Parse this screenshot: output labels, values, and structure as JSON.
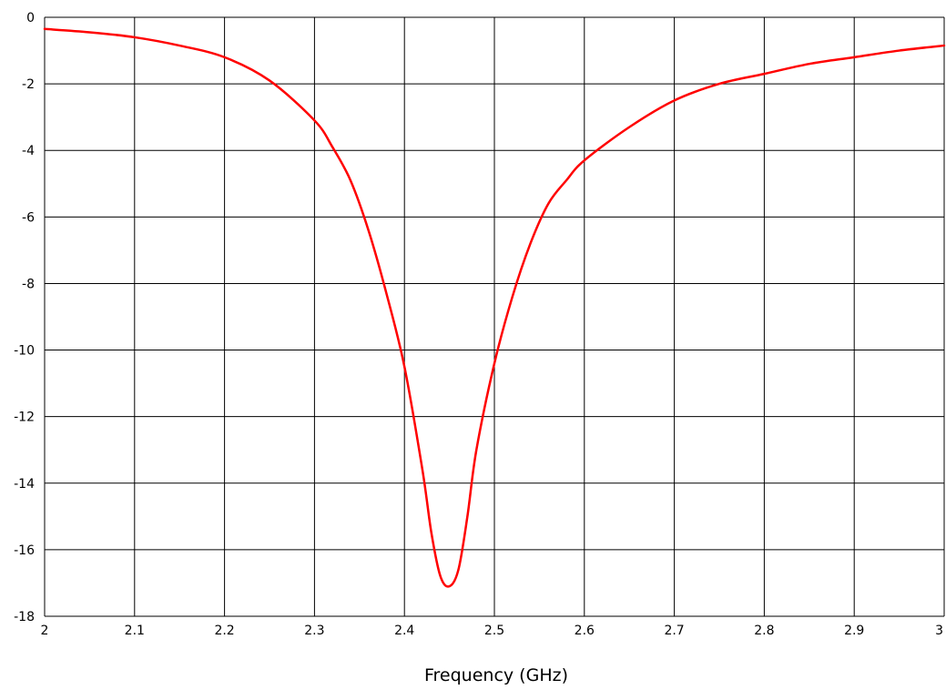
{
  "chart_data": {
    "type": "line",
    "title": "",
    "xlabel": "Frequency (GHz)",
    "ylabel": "",
    "xlim": [
      2,
      3
    ],
    "ylim": [
      -18,
      0
    ],
    "grid": true,
    "x_ticks": [
      2,
      2.1,
      2.2,
      2.3,
      2.4,
      2.5,
      2.6,
      2.7,
      2.8,
      2.9,
      3
    ],
    "x_tick_labels": [
      "2",
      "2.1",
      "2.2",
      "2.3",
      "2.4",
      "2.5",
      "2.6",
      "2.7",
      "2.8",
      "2.9",
      "3"
    ],
    "y_ticks": [
      0,
      -2,
      -4,
      -6,
      -8,
      -10,
      -12,
      -14,
      -16,
      -18
    ],
    "y_tick_labels": [
      "0",
      "-2",
      "-4",
      "-6",
      "-8",
      "-10",
      "-12",
      "-14",
      "-16",
      "-18"
    ],
    "series": [
      {
        "color": "#ff0000",
        "x": [
          2.0,
          2.05,
          2.1,
          2.15,
          2.2,
          2.25,
          2.3,
          2.32,
          2.34,
          2.36,
          2.38,
          2.4,
          2.42,
          2.43,
          2.44,
          2.45,
          2.46,
          2.47,
          2.48,
          2.5,
          2.52,
          2.54,
          2.56,
          2.58,
          2.6,
          2.65,
          2.7,
          2.75,
          2.8,
          2.85,
          2.9,
          2.95,
          3.0
        ],
        "y": [
          -0.35,
          -0.45,
          -0.6,
          -0.85,
          -1.2,
          -1.9,
          -3.1,
          -3.9,
          -4.9,
          -6.4,
          -8.3,
          -10.5,
          -13.6,
          -15.5,
          -16.8,
          -17.1,
          -16.6,
          -15.0,
          -13.0,
          -10.4,
          -8.4,
          -6.8,
          -5.6,
          -4.9,
          -4.3,
          -3.3,
          -2.5,
          -2.0,
          -1.7,
          -1.4,
          -1.2,
          -1.0,
          -0.85
        ]
      }
    ]
  }
}
